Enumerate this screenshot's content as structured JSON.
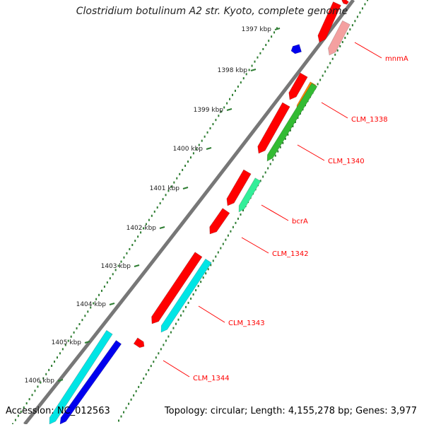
{
  "title": "Clostridium botulinum A2 str. Kyoto, complete genome",
  "footer": {
    "accession": "Accession: NC_012563",
    "topology": "Topology: circular; Length: 4,155,278 bp; Genes: 3,977"
  },
  "colors": {
    "backbone": "#777777",
    "tick": "#2e7d32",
    "label": "#ff0000",
    "gene_red": "#ff0000",
    "gene_pink": "#f4a0a0",
    "gene_orange": "#ff8800",
    "gene_green": "#33bb33",
    "gene_mint": "#33ee99",
    "gene_cyan": "#00e5e5",
    "gene_blue": "#0000ee"
  },
  "kbp_ticks": [
    "1397 kbp",
    "1398 kbp",
    "1399 kbp",
    "1400 kbp",
    "1401 kbp",
    "1402 kbp",
    "1403 kbp",
    "1404 kbp",
    "1405 kbp",
    "1406 kbp"
  ],
  "gene_labels": [
    "mnmA",
    "CLM_1338",
    "CLM_1340",
    "bcrA",
    "CLM_1342",
    "CLM_1343",
    "CLM_1344"
  ]
}
